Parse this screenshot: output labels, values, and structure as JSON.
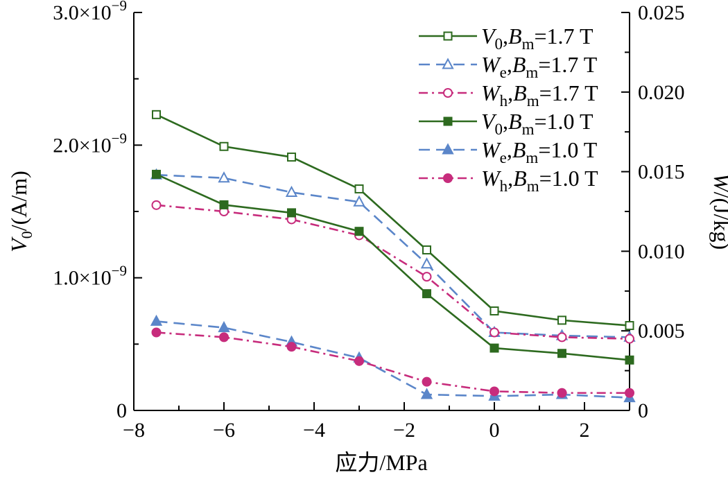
{
  "chart_data": {
    "type": "line",
    "xlabel": "应力/MPa",
    "ylabel_left": {
      "var": "V",
      "sub": "0",
      "rest": "/(A/m)"
    },
    "ylabel_right": {
      "var": "W",
      "rest": "/(J/kg)"
    },
    "xlim": [
      -8,
      3
    ],
    "ylim_left": [
      0,
      3e-09
    ],
    "ylim_right": [
      0,
      0.025
    ],
    "x_ticks": [
      -8,
      -6,
      -4,
      -2,
      0,
      2
    ],
    "x_tick_labels": [
      "−8",
      "−6",
      "−4",
      "−2",
      "0",
      "2"
    ],
    "y_left_ticks": [
      0,
      1e-09,
      2e-09,
      3e-09
    ],
    "y_left_tick_labels": [
      {
        "mant": "0",
        "exp": ""
      },
      {
        "mant": "1.0×10",
        "exp": "−9"
      },
      {
        "mant": "2.0×10",
        "exp": "−9"
      },
      {
        "mant": "3.0×10",
        "exp": "−9"
      }
    ],
    "y_right_ticks": [
      0,
      0.005,
      0.01,
      0.015,
      0.02,
      0.025
    ],
    "y_right_tick_labels": [
      "0",
      "0.005",
      "0.010",
      "0.015",
      "0.020",
      "0.025"
    ],
    "x": [
      -7.5,
      -6,
      -4.5,
      -3,
      -1.5,
      0,
      1.5,
      3
    ],
    "series": [
      {
        "name": "V0, Bm=1.7 T",
        "var": "V",
        "sub": "0",
        "field": "1.7 T",
        "axis": "left",
        "color": "#2d6a1f",
        "dash": "solid",
        "marker": "square",
        "filled": false,
        "values": [
          2.23e-09,
          1.99e-09,
          1.91e-09,
          1.67e-09,
          1.21e-09,
          7.5e-10,
          6.8e-10,
          6.4e-10
        ]
      },
      {
        "name": "We, Bm=1.7 T",
        "var": "W",
        "sub": "e",
        "field": "1.7 T",
        "axis": "right",
        "color": "#5b86c9",
        "dash": "dash",
        "marker": "triangle",
        "filled": false,
        "values": [
          0.0148,
          0.0146,
          0.0137,
          0.0131,
          0.0092,
          0.0049,
          0.0047,
          0.0046
        ]
      },
      {
        "name": "Wh, Bm=1.7 T",
        "var": "W",
        "sub": "h",
        "field": "1.7 T",
        "axis": "right",
        "color": "#c72c7c",
        "dash": "dashdot",
        "marker": "circle",
        "filled": false,
        "values": [
          0.0129,
          0.0125,
          0.012,
          0.011,
          0.0084,
          0.0049,
          0.0046,
          0.0045
        ]
      },
      {
        "name": "V0, Bm=1.0 T",
        "var": "V",
        "sub": "0",
        "field": "1.0 T",
        "axis": "left",
        "color": "#2d6a1f",
        "dash": "solid",
        "marker": "square",
        "filled": true,
        "values": [
          1.78e-09,
          1.55e-09,
          1.49e-09,
          1.35e-09,
          8.8e-10,
          4.7e-10,
          4.3e-10,
          3.8e-10
        ]
      },
      {
        "name": "We, Bm=1.0 T",
        "var": "W",
        "sub": "e",
        "field": "1.0 T",
        "axis": "right",
        "color": "#5b86c9",
        "dash": "dash",
        "marker": "triangle",
        "filled": true,
        "values": [
          0.0056,
          0.0052,
          0.0043,
          0.0033,
          0.001,
          0.0009,
          0.001,
          0.0008
        ]
      },
      {
        "name": "Wh, Bm=1.0 T",
        "var": "W",
        "sub": "h",
        "field": "1.0 T",
        "axis": "right",
        "color": "#c72c7c",
        "dash": "dashdot",
        "marker": "circle",
        "filled": true,
        "values": [
          0.0049,
          0.0046,
          0.004,
          0.0031,
          0.0018,
          0.0012,
          0.0011,
          0.0011
        ]
      }
    ]
  }
}
